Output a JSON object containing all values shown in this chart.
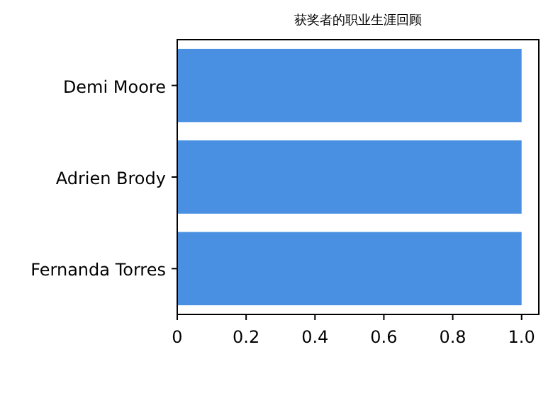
{
  "chart_data": {
    "type": "bar",
    "orientation": "horizontal",
    "title": "获奖者的职业生涯回顾",
    "categories": [
      "Demi Moore",
      "Adrien Brody",
      "Fernanda Torres"
    ],
    "values": [
      1.0,
      1.0,
      1.0
    ],
    "color": "#4a90e2",
    "xlim": [
      0,
      1.05
    ],
    "xticks": [
      0,
      {
        "value": 0.2,
        "label": "0.2"
      },
      {
        "value": 0.4,
        "label": "0.4"
      },
      {
        "value": 0.6,
        "label": "0.6"
      },
      {
        "value": 0.8,
        "label": "0.8"
      },
      {
        "value": 1,
        "label": "1.0"
      }
    ],
    "grid": false
  }
}
